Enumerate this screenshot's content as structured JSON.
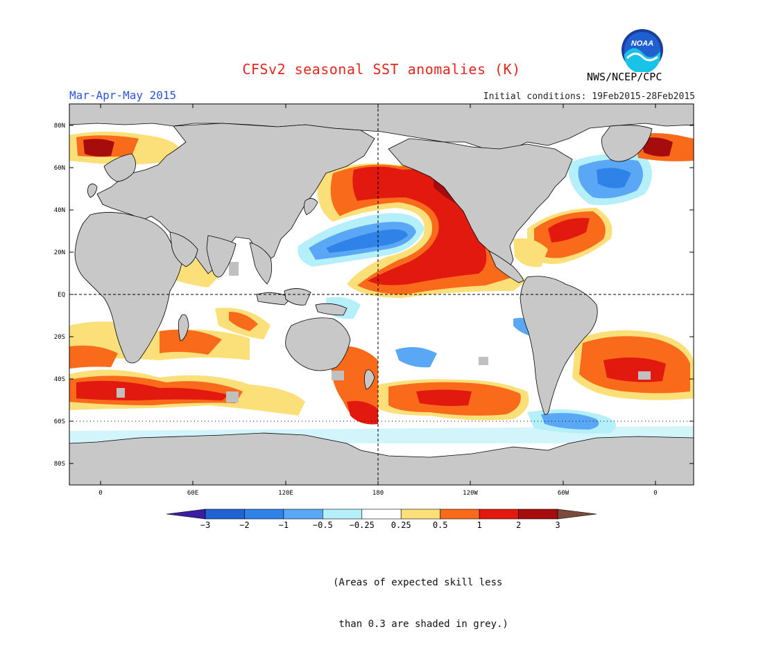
{
  "header": {
    "title": "CFSv2 seasonal SST anomalies (K)",
    "period": "Mar-Apr-May 2015",
    "initial_conditions": "Initial conditions: 19Feb2015-28Feb2015",
    "agency": "NWS/NCEP/CPC",
    "logo_text": "NOAA"
  },
  "map": {
    "projection": "cylindrical equidistant",
    "lat_ticks": [
      "80N",
      "60N",
      "40N",
      "20N",
      "EQ",
      "20S",
      "40S",
      "60S",
      "80S"
    ],
    "lon_ticks": [
      "0",
      "60E",
      "120E",
      "180",
      "120W",
      "60W",
      "0"
    ],
    "colors": {
      "land": "#c8c8c8",
      "ocean_neutral": "#ffffff",
      "coastline": "#000000",
      "skill_mask": "#c0c0c0"
    }
  },
  "legend": {
    "boundaries": [
      "-3",
      "-2",
      "-1",
      "-0.5",
      "-0.25",
      "0.25",
      "0.5",
      "1",
      "2",
      "3"
    ],
    "bins": [
      {
        "color": "#3c1da0",
        "range": "< -3"
      },
      {
        "color": "#1f64d2",
        "range": "-3 to -2"
      },
      {
        "color": "#2f83e8",
        "range": "-2 to -1"
      },
      {
        "color": "#5aa8f5",
        "range": "-1 to -0.5"
      },
      {
        "color": "#b4effa",
        "range": "-0.5 to -0.25"
      },
      {
        "color": "#ffffff",
        "range": "-0.25 to 0.25"
      },
      {
        "color": "#fbe07a",
        "range": "0.25 to 0.5"
      },
      {
        "color": "#f96a1b",
        "range": "0.5 to 1"
      },
      {
        "color": "#e1190f",
        "range": "1 to 2"
      },
      {
        "color": "#a60c0c",
        "range": "2 to 3"
      },
      {
        "color": "#7a4a3a",
        "range": "> 3"
      }
    ]
  },
  "footnote": {
    "line1": "(Areas of expected skill less",
    "line2": " than 0.3 are shaded in grey.)"
  }
}
